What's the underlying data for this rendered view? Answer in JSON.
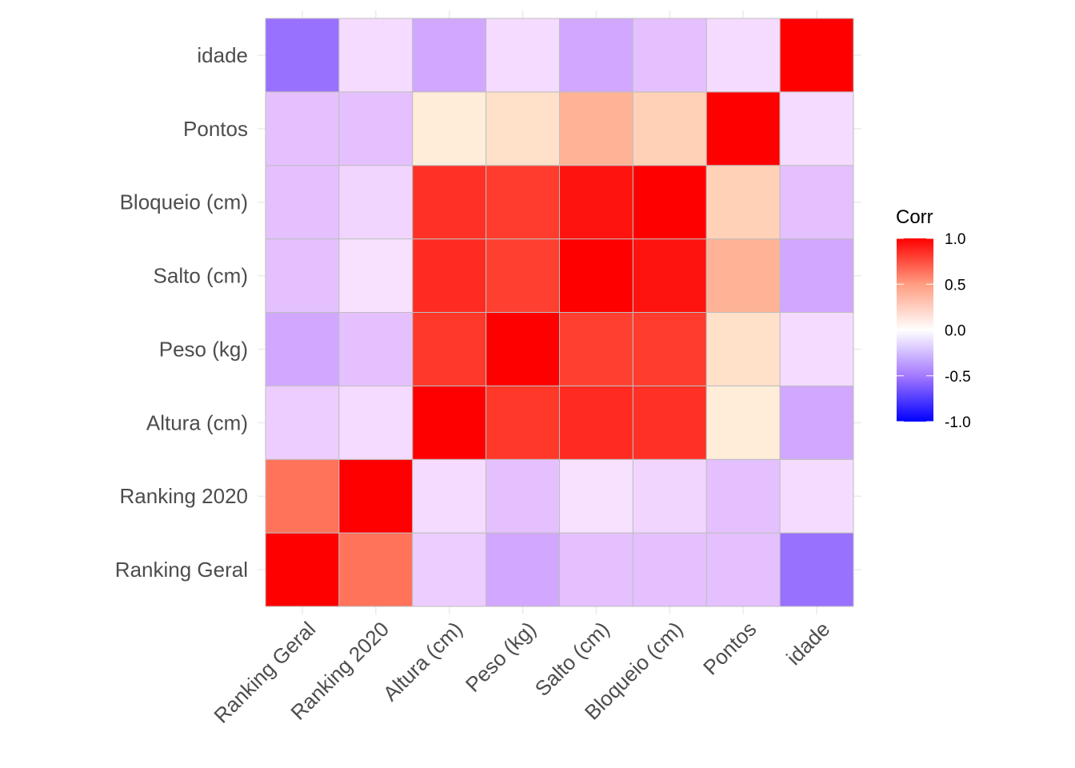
{
  "chart_data": {
    "type": "heatmap",
    "title": "",
    "xlabel": "",
    "ylabel": "",
    "variables": [
      "Ranking Geral",
      "Ranking 2020",
      "Altura (cm)",
      "Peso (kg)",
      "Salto (cm)",
      "Bloqueio (cm)",
      "Pontos",
      "idade"
    ],
    "matrix": [
      [
        1.0,
        0.45,
        -0.15,
        -0.3,
        -0.2,
        -0.2,
        -0.2,
        -0.55
      ],
      [
        0.45,
        1.0,
        -0.1,
        -0.2,
        -0.08,
        -0.12,
        -0.2,
        -0.1
      ],
      [
        -0.15,
        -0.1,
        1.0,
        0.72,
        0.78,
        0.75,
        0.03,
        -0.3
      ],
      [
        -0.3,
        -0.2,
        0.72,
        1.0,
        0.68,
        0.7,
        0.06,
        -0.1
      ],
      [
        -0.2,
        -0.08,
        0.78,
        0.68,
        1.0,
        0.9,
        0.2,
        -0.3
      ],
      [
        -0.2,
        -0.12,
        0.75,
        0.7,
        0.9,
        1.0,
        0.1,
        -0.2
      ],
      [
        -0.2,
        -0.2,
        0.03,
        0.06,
        0.2,
        0.1,
        1.0,
        -0.1
      ],
      [
        -0.55,
        -0.1,
        -0.3,
        -0.1,
        -0.3,
        -0.2,
        -0.1,
        1.0
      ]
    ],
    "color_scale": {
      "low": "#0000FF",
      "mid": "#FFFFFF",
      "high": "#FF0000",
      "limits": [
        -1.0,
        1.0
      ]
    },
    "legend": {
      "title": "Corr",
      "position": "right",
      "ticks": [
        1.0,
        0.5,
        0.0,
        -0.5,
        -1.0
      ],
      "tick_labels": [
        "1.0",
        "0.5",
        "0.0",
        "-0.5",
        "-1.0"
      ]
    },
    "grid": true,
    "x_tick_rotation_deg": 45,
    "cell_outline_color": "#BEBEBE"
  }
}
